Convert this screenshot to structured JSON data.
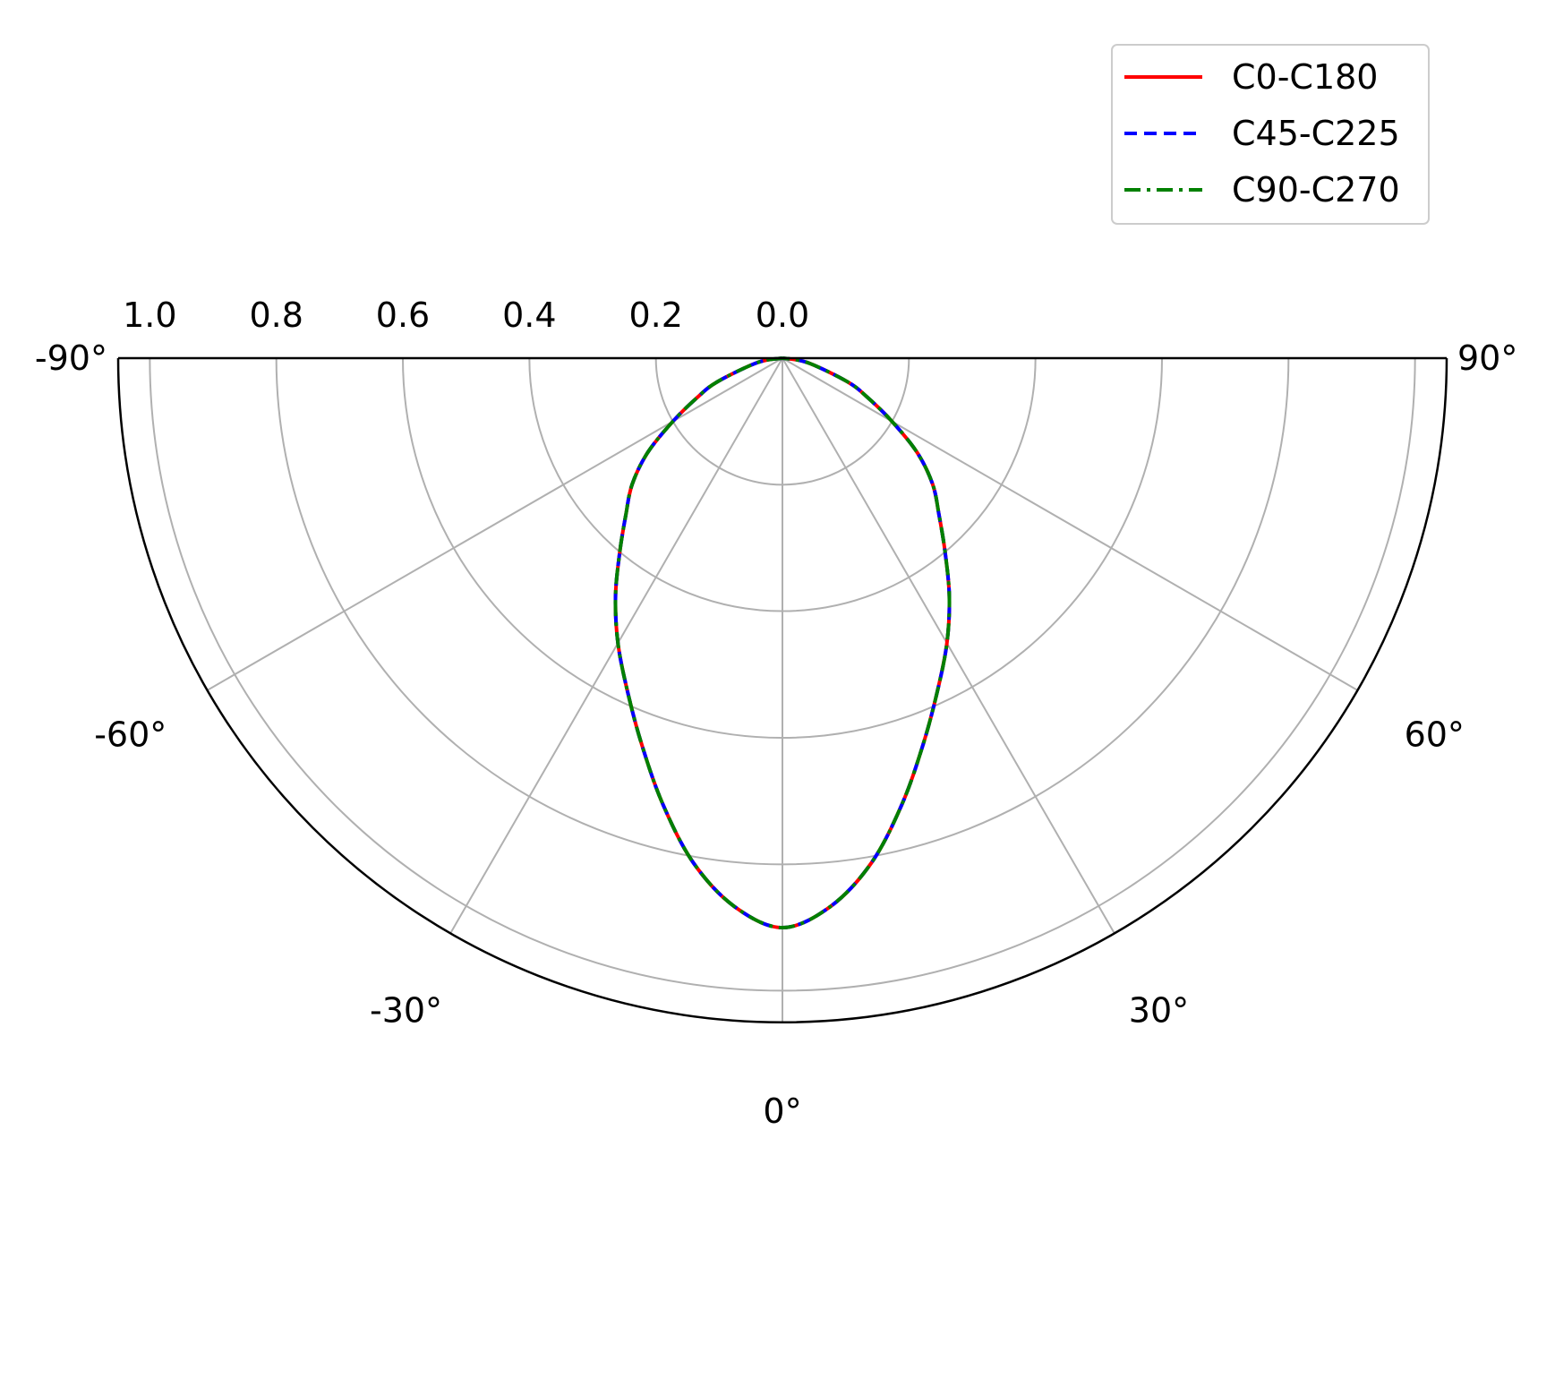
{
  "chart_data": {
    "type": "line",
    "subtype": "polar",
    "title": "",
    "theta_range_deg": [
      -90,
      90
    ],
    "theta_ticks": [
      "-90°",
      "-60°",
      "-30°",
      "0°",
      "30°",
      "60°",
      "90°"
    ],
    "theta_tick_values": [
      -90,
      -60,
      -30,
      0,
      30,
      60,
      90
    ],
    "r_range": [
      0,
      1.05
    ],
    "r_ticks": [
      "1.0",
      "0.8",
      "0.6",
      "0.4",
      "0.2",
      "0.0"
    ],
    "r_tick_values": [
      1.0,
      0.8,
      0.6,
      0.4,
      0.2,
      0.0
    ],
    "r_axis_inverted": true,
    "zero_direction": "down",
    "grid": true,
    "legend_position": "top-right",
    "x": [
      -90,
      -80,
      -70,
      -65,
      -60,
      -55,
      -50,
      -45,
      -40,
      -35,
      -30,
      -25,
      -20,
      -15,
      -10,
      -5,
      0,
      5,
      10,
      15,
      20,
      25,
      30,
      35,
      40,
      45,
      50,
      55,
      60,
      65,
      70,
      80,
      90
    ],
    "series": [
      {
        "name": "C0-C180",
        "color": "#ff0000",
        "linestyle": "solid",
        "values": [
          0.0,
          0.04,
          0.11,
          0.15,
          0.2,
          0.26,
          0.31,
          0.35,
          0.4,
          0.46,
          0.52,
          0.58,
          0.65,
          0.73,
          0.81,
          0.87,
          0.9,
          0.87,
          0.81,
          0.73,
          0.65,
          0.58,
          0.52,
          0.46,
          0.4,
          0.35,
          0.31,
          0.26,
          0.2,
          0.15,
          0.11,
          0.04,
          0.0
        ]
      },
      {
        "name": "C45-C225",
        "color": "#0000ff",
        "linestyle": "dashed",
        "values": [
          0.0,
          0.04,
          0.11,
          0.15,
          0.2,
          0.26,
          0.31,
          0.35,
          0.4,
          0.46,
          0.52,
          0.58,
          0.65,
          0.73,
          0.81,
          0.87,
          0.9,
          0.87,
          0.81,
          0.73,
          0.65,
          0.58,
          0.52,
          0.46,
          0.4,
          0.35,
          0.31,
          0.26,
          0.2,
          0.15,
          0.11,
          0.04,
          0.0
        ]
      },
      {
        "name": "C90-C270",
        "color": "#008000",
        "linestyle": "dashdot",
        "values": [
          0.0,
          0.04,
          0.11,
          0.15,
          0.2,
          0.26,
          0.31,
          0.35,
          0.4,
          0.46,
          0.52,
          0.58,
          0.65,
          0.73,
          0.81,
          0.87,
          0.9,
          0.87,
          0.81,
          0.73,
          0.65,
          0.58,
          0.52,
          0.46,
          0.4,
          0.35,
          0.31,
          0.26,
          0.2,
          0.15,
          0.11,
          0.04,
          0.0
        ]
      }
    ]
  }
}
